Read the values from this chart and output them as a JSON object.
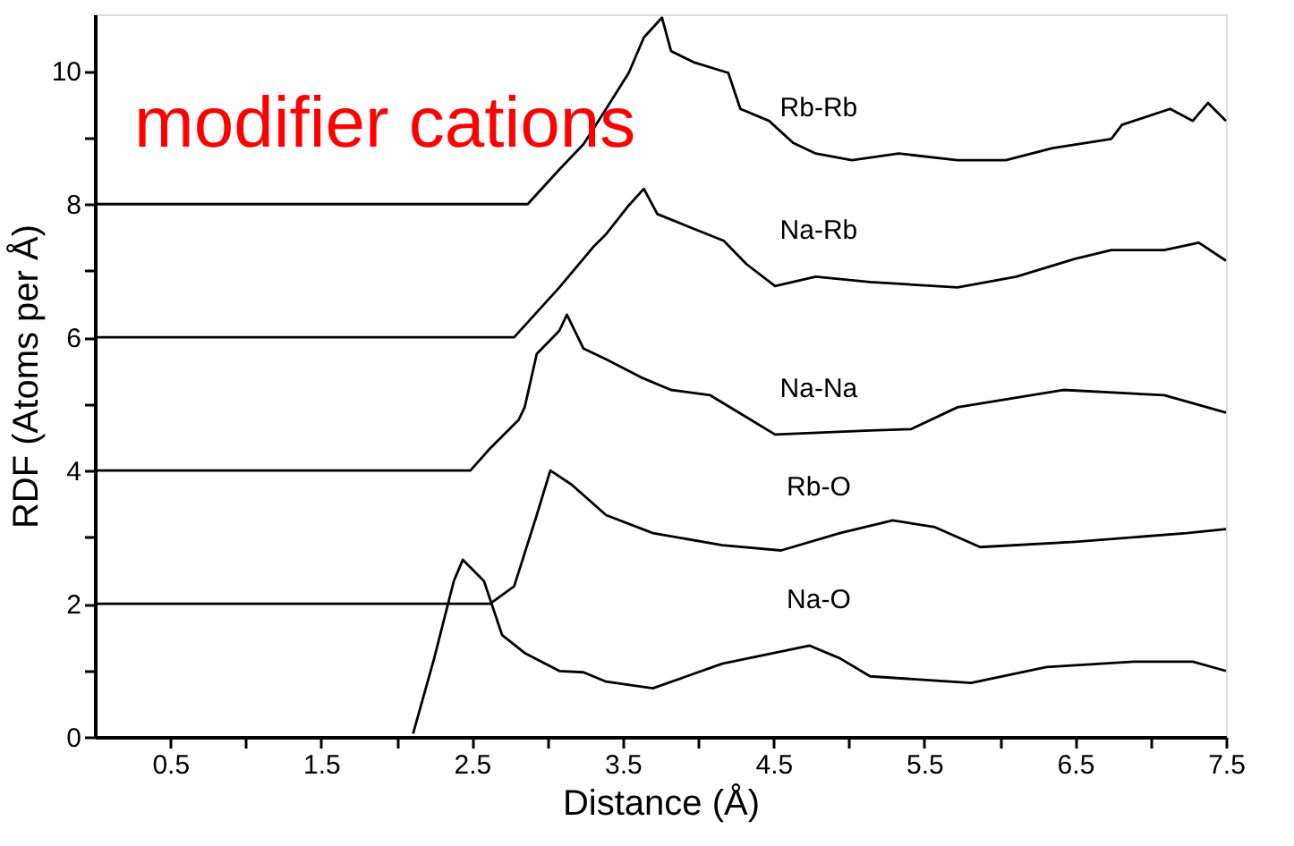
{
  "chart_data": {
    "type": "line",
    "xlabel": "Distance (Å)",
    "ylabel": "RDF (Atoms per Å)",
    "annotations": [
      "modifier cations"
    ],
    "xlim": [
      0,
      7.5
    ],
    "ylim": [
      0,
      10.85
    ],
    "xticks": [
      0.5,
      {
        "value": 1,
        "label": null
      },
      1.5,
      {
        "value": 2,
        "label": null
      },
      2.5,
      {
        "value": 3,
        "label": null
      },
      3.5,
      {
        "value": 4,
        "label": null
      },
      4.5,
      {
        "value": 5,
        "label": null
      },
      5.5,
      {
        "value": 6,
        "label": null
      },
      6.5,
      {
        "value": 7,
        "label": null
      },
      7.5
    ],
    "yticks": [
      0,
      {
        "value": 1,
        "label": null
      },
      2,
      {
        "value": 3,
        "label": null
      },
      4,
      {
        "value": 5,
        "label": null
      },
      6,
      {
        "value": 7,
        "label": null
      },
      8,
      {
        "value": 9,
        "label": null
      },
      10
    ],
    "marker": "none",
    "line_style": "solid",
    "series": [
      {
        "name": "Rb-Rb",
        "color": "#000000",
        "x": [
          0,
          2.87,
          3.08,
          3.24,
          3.39,
          3.54,
          3.64,
          3.76,
          3.82,
          3.97,
          4.2,
          4.28,
          4.47,
          4.63,
          4.78,
          5.02,
          5.33,
          5.72,
          6.04,
          6.35,
          6.74,
          6.81,
          7.13,
          7.28,
          7.38,
          7.5
        ],
        "values": [
          8,
          8,
          8.52,
          8.9,
          9.43,
          9.97,
          10.5,
          10.8,
          10.3,
          10.13,
          9.97,
          9.43,
          9.25,
          8.92,
          8.76,
          8.66,
          8.76,
          8.66,
          8.66,
          8.84,
          8.98,
          9.19,
          9.43,
          9.25,
          9.52,
          9.25
        ]
      },
      {
        "name": "Na-Rb",
        "color": "#000000",
        "x": [
          0,
          2.78,
          3.08,
          3.31,
          3.39,
          3.54,
          3.64,
          3.73,
          3.97,
          4.17,
          4.32,
          4.51,
          4.78,
          5.14,
          5.72,
          6.11,
          6.5,
          6.74,
          7.09,
          7.32,
          7.5
        ],
        "values": [
          6,
          6,
          6.75,
          7.37,
          7.55,
          7.98,
          8.23,
          7.85,
          7.63,
          7.45,
          7.1,
          6.77,
          6.91,
          6.83,
          6.75,
          6.91,
          7.18,
          7.31,
          7.31,
          7.42,
          7.15
        ]
      },
      {
        "name": "Na-Na",
        "color": "#000000",
        "x": [
          0,
          2.49,
          2.62,
          2.81,
          2.85,
          2.93,
          3.08,
          3.13,
          3.24,
          3.39,
          3.62,
          3.82,
          4.08,
          4.35,
          4.51,
          5.14,
          5.41,
          5.72,
          6.42,
          7.09,
          7.5
        ],
        "values": [
          4,
          4,
          4.33,
          4.76,
          4.95,
          5.75,
          6.1,
          6.34,
          5.83,
          5.67,
          5.4,
          5.21,
          5.13,
          4.76,
          4.54,
          4.6,
          4.62,
          4.95,
          5.21,
          5.13,
          4.87
        ]
      },
      {
        "name": "Rb-O",
        "color": "#000000",
        "x": [
          0,
          2.62,
          2.78,
          2.93,
          3.02,
          3.16,
          3.39,
          3.7,
          4.16,
          4.55,
          4.94,
          5.29,
          5.57,
          5.87,
          6.5,
          7.24,
          7.5
        ],
        "values": [
          2,
          2,
          2.26,
          3.33,
          4.0,
          3.79,
          3.33,
          3.06,
          2.88,
          2.8,
          3.06,
          3.25,
          3.15,
          2.85,
          2.93,
          3.06,
          3.12
        ]
      },
      {
        "name": "Na-O",
        "color": "#000000",
        "x": [
          2.11,
          2.25,
          2.38,
          2.44,
          2.58,
          2.7,
          2.85,
          3.08,
          3.24,
          3.39,
          3.7,
          4.16,
          4.74,
          4.94,
          5.14,
          5.81,
          6.31,
          6.89,
          7.28,
          7.5
        ],
        "values": [
          0.05,
          1.18,
          2.34,
          2.66,
          2.34,
          1.53,
          1.26,
          0.99,
          0.97,
          0.83,
          0.73,
          1.1,
          1.37,
          1.18,
          0.91,
          0.81,
          1.05,
          1.13,
          1.13,
          0.99
        ]
      }
    ]
  }
}
